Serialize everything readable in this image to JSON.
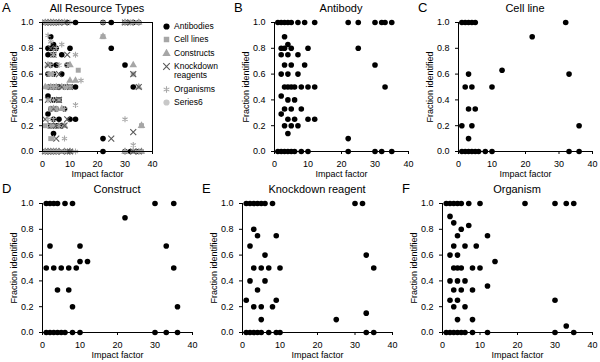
{
  "chart_data": [
    {
      "type": "scatter",
      "panel": "A",
      "title": "All Resource Types",
      "x_label": "Impact factor",
      "y_label": "Fraction identified",
      "xlim": [
        0,
        40
      ],
      "xticks": [
        0,
        10,
        20,
        30,
        40
      ],
      "ylim": [
        0,
        1
      ],
      "yticks": [
        {
          "value": 0,
          "label": "0.0"
        },
        {
          "value": 0.2,
          "label": "0.2"
        },
        {
          "value": 0.4,
          "label": "0.4"
        },
        {
          "value": 0.6,
          "label": "0.6"
        },
        {
          "value": 0.8,
          "label": "0.8"
        },
        {
          "value": 1,
          "label": "1.0"
        }
      ],
      "legend": "right",
      "series": [
        {
          "name": "Antibodies",
          "color": "#000000",
          "marker": "circle",
          "x": [
            1,
            2,
            3,
            4,
            5,
            7,
            9,
            12,
            22,
            25,
            30,
            32,
            33,
            35,
            3,
            4,
            2,
            3,
            5,
            10,
            25,
            2,
            4,
            7,
            3,
            5,
            9,
            30,
            2,
            4,
            7,
            3,
            4,
            5,
            6,
            8,
            10,
            33,
            12,
            2,
            4,
            6,
            3,
            5,
            8,
            2,
            4,
            6,
            10,
            12,
            3,
            5,
            7,
            4,
            22,
            1,
            2,
            3,
            4,
            5,
            6,
            8,
            10,
            22,
            30,
            32,
            35
          ],
          "values": [
            1,
            1,
            1,
            1,
            1,
            1,
            1,
            1,
            1,
            1,
            1,
            1,
            1,
            1,
            0.89,
            0.83,
            0.8,
            0.8,
            0.8,
            0.8,
            0.8,
            0.75,
            0.75,
            0.75,
            0.67,
            0.67,
            0.67,
            0.67,
            0.6,
            0.6,
            0.6,
            0.5,
            0.5,
            0.5,
            0.5,
            0.5,
            0.5,
            0.5,
            0.5,
            0.43,
            0.4,
            0.4,
            0.33,
            0.33,
            0.33,
            0.29,
            0.25,
            0.25,
            0.25,
            0.25,
            0.2,
            0.2,
            0.2,
            0.14,
            0.1,
            0,
            0,
            0,
            0,
            0,
            0,
            0,
            0,
            0,
            0,
            0,
            0
          ]
        },
        {
          "name": "Cell lines",
          "color": "#a6a6a6",
          "marker": "square",
          "x": [
            1,
            2,
            3,
            4,
            5,
            32,
            22,
            3,
            13,
            2,
            4,
            10,
            33,
            3,
            5,
            1,
            4,
            36,
            3,
            1,
            2,
            3,
            4,
            5,
            6,
            8,
            10,
            33,
            36
          ],
          "values": [
            1,
            1,
            1,
            1,
            1,
            1,
            0.89,
            0.6,
            0.63,
            0.5,
            0.5,
            0.5,
            0.6,
            0.33,
            0.33,
            0.2,
            0.2,
            0.2,
            0.1,
            0,
            0,
            0,
            0,
            0,
            0,
            0,
            0,
            0,
            0
          ]
        },
        {
          "name": "Constructs",
          "color": "#a6a6a6",
          "marker": "triangle",
          "x": [
            1,
            2,
            3,
            4,
            6,
            8,
            30,
            35,
            22,
            2,
            10,
            33,
            1,
            3,
            5,
            7,
            9,
            10,
            12,
            35,
            8,
            4,
            7,
            36,
            1,
            2,
            3,
            4,
            5,
            6,
            8,
            10,
            30,
            33,
            36
          ],
          "values": [
            1,
            1,
            1,
            1,
            1,
            1,
            1,
            1,
            0.89,
            0.67,
            0.67,
            0.67,
            0.5,
            0.5,
            0.5,
            0.5,
            0.5,
            0.55,
            0.55,
            0.5,
            0.2,
            0.33,
            0.33,
            0.2,
            0,
            0,
            0,
            0,
            0,
            0,
            0,
            0,
            0,
            0,
            0
          ]
        },
        {
          "name": "Knockdown reagents",
          "color": "#595959",
          "marker": "times",
          "x": [
            1,
            2,
            3,
            4,
            5,
            6,
            8,
            30,
            32,
            3,
            4,
            9,
            2,
            6,
            33,
            3,
            5,
            7,
            10,
            35,
            2,
            6,
            4,
            1,
            9,
            3,
            5,
            8,
            25,
            33,
            5,
            1,
            2,
            3,
            4,
            5,
            7,
            9,
            10,
            33,
            35
          ],
          "values": [
            1,
            1,
            1,
            1,
            1,
            1,
            1,
            1,
            1,
            0.8,
            0.75,
            0.75,
            0.67,
            0.6,
            0.6,
            0.5,
            0.5,
            0.5,
            0.5,
            0.5,
            0.4,
            0.4,
            0.33,
            0.25,
            0.25,
            0.2,
            0.2,
            0.2,
            0.1,
            0.15,
            0.1,
            0,
            0,
            0,
            0,
            0,
            0,
            0,
            0,
            0,
            0
          ]
        },
        {
          "name": "Organisms",
          "color": "#a6a6a6",
          "marker": "asterisk",
          "x": [
            1,
            2,
            3,
            4,
            5,
            7,
            10,
            22,
            30,
            33,
            35,
            2,
            3,
            5,
            7,
            12,
            4,
            3,
            6,
            9,
            2,
            4,
            14,
            3,
            4,
            5,
            8,
            10,
            2,
            4,
            6,
            12,
            3,
            5,
            8,
            2,
            4,
            30,
            3,
            6,
            8,
            4,
            33,
            1,
            2,
            3,
            4,
            5,
            6,
            8,
            12,
            30,
            35
          ],
          "values": [
            1,
            1,
            1,
            1,
            1,
            1,
            1,
            1,
            1,
            1,
            1,
            0.9,
            0.85,
            0.8,
            0.83,
            0.75,
            0.75,
            0.67,
            0.67,
            0.67,
            0.6,
            0.6,
            0.55,
            0.5,
            0.5,
            0.5,
            0.5,
            0.5,
            0.4,
            0.4,
            0.4,
            0.36,
            0.33,
            0.33,
            0.33,
            0.25,
            0.25,
            0.25,
            0.2,
            0.2,
            0.1,
            0.1,
            0.05,
            0,
            0,
            0,
            0,
            0,
            0,
            0,
            0,
            0,
            0
          ]
        },
        {
          "name": "Series6",
          "color": "#c8c8c8",
          "marker": "circle",
          "x": [],
          "values": []
        }
      ]
    },
    {
      "type": "scatter",
      "panel": "B",
      "title": "Antibody",
      "x_label": "Impact factor",
      "y_label": "Fraction identified",
      "xlim": [
        0,
        40
      ],
      "xticks": [
        0,
        10,
        20,
        30,
        40
      ],
      "ylim": [
        0,
        1
      ],
      "yticks": [
        {
          "value": 0,
          "label": "0.0"
        },
        {
          "value": 0.2,
          "label": "0.2"
        },
        {
          "value": 0.4,
          "label": "0.4"
        },
        {
          "value": 0.6,
          "label": "0.6"
        },
        {
          "value": 0.8,
          "label": "0.8"
        },
        {
          "value": 1,
          "label": "1.0"
        }
      ],
      "color": "#000000",
      "marker": "circle",
      "x": [
        1,
        2,
        3,
        4,
        5,
        7,
        9,
        12,
        22,
        25,
        30,
        32,
        33,
        35,
        3,
        4,
        2,
        3,
        5,
        10,
        25,
        2,
        4,
        7,
        3,
        5,
        9,
        30,
        2,
        4,
        7,
        3,
        4,
        5,
        6,
        8,
        10,
        33,
        12,
        2,
        4,
        6,
        3,
        5,
        8,
        2,
        4,
        6,
        10,
        12,
        3,
        5,
        7,
        4,
        22,
        1,
        2,
        3,
        4,
        5,
        6,
        8,
        10,
        22,
        30,
        32,
        35
      ],
      "values": [
        1,
        1,
        1,
        1,
        1,
        1,
        1,
        1,
        1,
        1,
        1,
        1,
        1,
        1,
        0.89,
        0.83,
        0.8,
        0.8,
        0.8,
        0.8,
        0.8,
        0.75,
        0.75,
        0.75,
        0.67,
        0.67,
        0.67,
        0.67,
        0.6,
        0.6,
        0.6,
        0.5,
        0.5,
        0.5,
        0.5,
        0.5,
        0.5,
        0.5,
        0.5,
        0.43,
        0.4,
        0.4,
        0.33,
        0.33,
        0.33,
        0.29,
        0.25,
        0.25,
        0.25,
        0.25,
        0.2,
        0.2,
        0.2,
        0.14,
        0.1,
        0,
        0,
        0,
        0,
        0,
        0,
        0,
        0,
        0,
        0,
        0,
        0
      ]
    },
    {
      "type": "scatter",
      "panel": "C",
      "title": "Cell line",
      "x_label": "Impact factor",
      "y_label": "Fraction identified",
      "xlim": [
        0,
        40
      ],
      "xticks": [
        0,
        10,
        20,
        30,
        40
      ],
      "ylim": [
        0,
        1
      ],
      "yticks": [
        {
          "value": 0,
          "label": "0.0"
        },
        {
          "value": 0.2,
          "label": "0.2"
        },
        {
          "value": 0.4,
          "label": "0.4"
        },
        {
          "value": 0.6,
          "label": "0.6"
        },
        {
          "value": 0.8,
          "label": "0.8"
        },
        {
          "value": 1,
          "label": "1.0"
        }
      ],
      "color": "#000000",
      "marker": "circle",
      "x": [
        1,
        2,
        3,
        4,
        5,
        32,
        22,
        3,
        13,
        2,
        4,
        10,
        33,
        3,
        5,
        1,
        4,
        36,
        3,
        1,
        2,
        3,
        4,
        5,
        6,
        8,
        10,
        33,
        36
      ],
      "values": [
        1,
        1,
        1,
        1,
        1,
        1,
        0.89,
        0.6,
        0.63,
        0.5,
        0.5,
        0.5,
        0.6,
        0.33,
        0.33,
        0.2,
        0.2,
        0.2,
        0.1,
        0,
        0,
        0,
        0,
        0,
        0,
        0,
        0,
        0,
        0
      ]
    },
    {
      "type": "scatter",
      "panel": "D",
      "title": "Construct",
      "x_label": "Impact factor",
      "y_label": "Fraction identified",
      "xlim": [
        0,
        40
      ],
      "xticks": [
        0,
        10,
        20,
        30,
        40
      ],
      "ylim": [
        0,
        1
      ],
      "yticks": [
        {
          "value": 0,
          "label": "0.0"
        },
        {
          "value": 0.2,
          "label": "0.2"
        },
        {
          "value": 0.4,
          "label": "0.4"
        },
        {
          "value": 0.6,
          "label": "0.6"
        },
        {
          "value": 0.8,
          "label": "0.8"
        },
        {
          "value": 1,
          "label": "1.0"
        }
      ],
      "color": "#000000",
      "marker": "circle",
      "x": [
        1,
        2,
        3,
        4,
        6,
        8,
        30,
        35,
        22,
        2,
        10,
        33,
        1,
        3,
        5,
        7,
        9,
        10,
        12,
        35,
        8,
        4,
        7,
        36,
        1,
        2,
        3,
        4,
        5,
        6,
        8,
        10,
        30,
        33,
        36
      ],
      "values": [
        1,
        1,
        1,
        1,
        1,
        1,
        1,
        1,
        0.89,
        0.67,
        0.67,
        0.67,
        0.5,
        0.5,
        0.5,
        0.5,
        0.5,
        0.55,
        0.55,
        0.5,
        0.2,
        0.33,
        0.33,
        0.2,
        0,
        0,
        0,
        0,
        0,
        0,
        0,
        0,
        0,
        0,
        0
      ]
    },
    {
      "type": "scatter",
      "panel": "E",
      "title": "Knockdown reagent",
      "x_label": "Impact factor",
      "y_label": "Fraction identified",
      "xlim": [
        0,
        40
      ],
      "xticks": [
        0,
        10,
        20,
        30,
        40
      ],
      "ylim": [
        0,
        1
      ],
      "yticks": [
        {
          "value": 0,
          "label": "0.0"
        },
        {
          "value": 0.2,
          "label": "0.2"
        },
        {
          "value": 0.4,
          "label": "0.4"
        },
        {
          "value": 0.6,
          "label": "0.6"
        },
        {
          "value": 0.8,
          "label": "0.8"
        },
        {
          "value": 1,
          "label": "1.0"
        }
      ],
      "color": "#000000",
      "marker": "circle",
      "x": [
        1,
        2,
        3,
        4,
        5,
        6,
        8,
        30,
        32,
        3,
        4,
        9,
        2,
        6,
        33,
        3,
        5,
        7,
        10,
        35,
        2,
        6,
        4,
        1,
        9,
        3,
        5,
        8,
        25,
        33,
        5,
        1,
        2,
        3,
        4,
        5,
        7,
        9,
        10,
        33,
        35
      ],
      "values": [
        1,
        1,
        1,
        1,
        1,
        1,
        1,
        1,
        1,
        0.8,
        0.75,
        0.75,
        0.67,
        0.6,
        0.6,
        0.5,
        0.5,
        0.5,
        0.5,
        0.5,
        0.4,
        0.4,
        0.33,
        0.25,
        0.25,
        0.2,
        0.2,
        0.2,
        0.1,
        0.15,
        0.1,
        0,
        0,
        0,
        0,
        0,
        0,
        0,
        0,
        0,
        0
      ]
    },
    {
      "type": "scatter",
      "panel": "F",
      "title": "Organism",
      "x_label": "Impact factor",
      "y_label": "Fraction identified",
      "xlim": [
        0,
        40
      ],
      "xticks": [
        0,
        10,
        20,
        30,
        40
      ],
      "ylim": [
        0,
        1
      ],
      "yticks": [
        {
          "value": 0,
          "label": "0.0"
        },
        {
          "value": 0.2,
          "label": "0.2"
        },
        {
          "value": 0.4,
          "label": "0.4"
        },
        {
          "value": 0.6,
          "label": "0.6"
        },
        {
          "value": 0.8,
          "label": "0.8"
        },
        {
          "value": 1,
          "label": "1.0"
        }
      ],
      "color": "#000000",
      "marker": "circle",
      "x": [
        1,
        2,
        3,
        4,
        5,
        7,
        10,
        22,
        30,
        33,
        35,
        2,
        3,
        5,
        7,
        12,
        4,
        3,
        6,
        9,
        2,
        4,
        14,
        3,
        4,
        5,
        8,
        10,
        2,
        4,
        6,
        12,
        3,
        5,
        8,
        2,
        4,
        30,
        3,
        6,
        8,
        4,
        33,
        1,
        2,
        3,
        4,
        5,
        6,
        8,
        12,
        30,
        35
      ],
      "values": [
        1,
        1,
        1,
        1,
        1,
        1,
        1,
        1,
        1,
        1,
        1,
        0.9,
        0.85,
        0.8,
        0.83,
        0.75,
        0.75,
        0.67,
        0.67,
        0.67,
        0.6,
        0.6,
        0.55,
        0.5,
        0.5,
        0.5,
        0.5,
        0.5,
        0.4,
        0.4,
        0.4,
        0.36,
        0.33,
        0.33,
        0.33,
        0.25,
        0.25,
        0.25,
        0.2,
        0.2,
        0.1,
        0.1,
        0.05,
        0,
        0,
        0,
        0,
        0,
        0,
        0,
        0,
        0,
        0
      ]
    }
  ]
}
